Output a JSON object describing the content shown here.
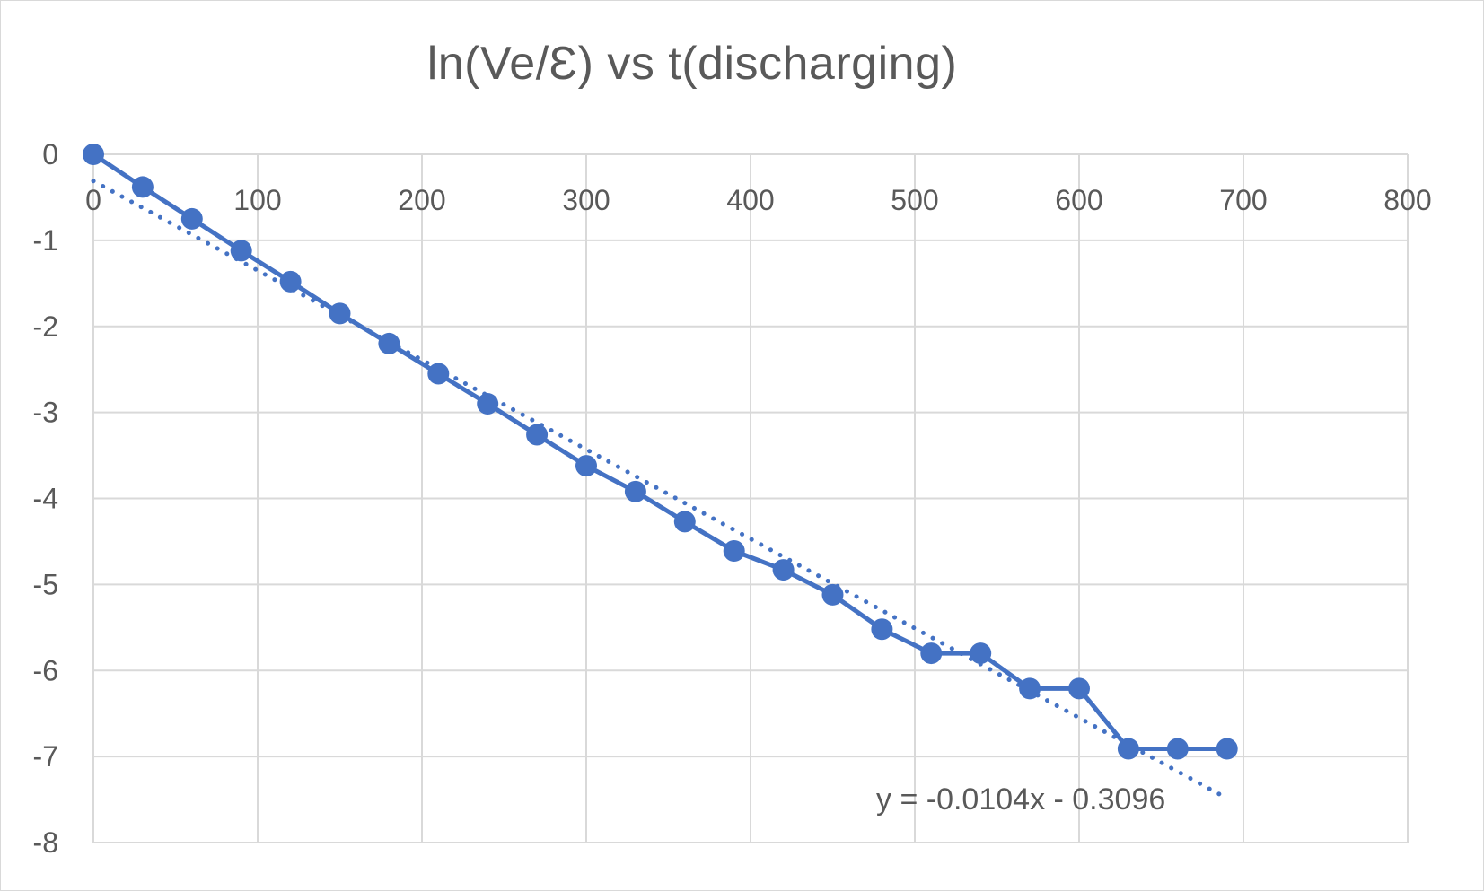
{
  "chart_data": {
    "type": "scatter",
    "title": "ln(Ve/Ɛ) vs t(discharging)",
    "xlabel": "",
    "ylabel": "",
    "xlim": [
      0,
      800
    ],
    "ylim": [
      -8,
      0
    ],
    "x_ticks": [
      "0",
      "100",
      "200",
      "300",
      "400",
      "500",
      "600",
      "700",
      "800"
    ],
    "y_ticks": [
      "0",
      "-1",
      "-2",
      "-3",
      "-4",
      "-5",
      "-6",
      "-7",
      "-8"
    ],
    "grid": true,
    "legend": "none",
    "series": [
      {
        "x": [
          0,
          30,
          60,
          90,
          120,
          150,
          180,
          210,
          240,
          270,
          300,
          330,
          360,
          390,
          420,
          450,
          480,
          510,
          540,
          570,
          600,
          630,
          660,
          690
        ],
        "y": [
          0,
          -0.38,
          -0.75,
          -1.12,
          -1.48,
          -1.85,
          -2.2,
          -2.55,
          -2.9,
          -3.26,
          -3.62,
          -3.92,
          -4.27,
          -4.61,
          -4.83,
          -5.12,
          -5.52,
          -5.8,
          -5.8,
          -6.21,
          -6.21,
          -6.91,
          -6.91,
          -6.91
        ],
        "color": "#4472c4",
        "style": "line+markers"
      }
    ],
    "trendline": {
      "type": "linear",
      "slope": -0.0104,
      "intercept": -0.3096,
      "x_range": [
        0,
        690
      ],
      "style": "dotted",
      "color": "#4472c4",
      "equation_label": "y = -0.0104x - 0.3096"
    }
  }
}
